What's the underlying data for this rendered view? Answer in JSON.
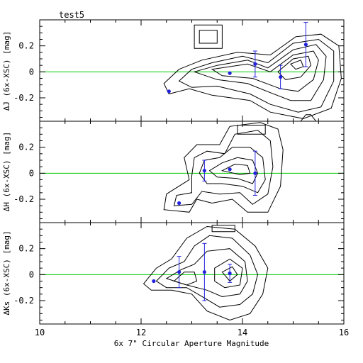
{
  "chart_data": [
    {
      "type": "contour",
      "panel": "top",
      "title": "test5",
      "xlabel": "",
      "ylabel": "ΔJ (6x-XSC) [mag]",
      "xlim": [
        10,
        16
      ],
      "ylim": [
        -0.38,
        0.4
      ],
      "ytick_labels": [
        "0.2",
        "0",
        "-0.2"
      ],
      "ytick_values": [
        0.2,
        0,
        -0.2
      ],
      "reference_line": {
        "y": 0,
        "color": "#00cc00"
      },
      "points": [
        {
          "x": 12.55,
          "y": -0.15,
          "yerr": 0
        },
        {
          "x": 13.75,
          "y": -0.01,
          "yerr": 0
        },
        {
          "x": 14.25,
          "y": 0.06,
          "yerr": 0.1
        },
        {
          "x": 14.75,
          "y": -0.04,
          "yerr": 0.09
        },
        {
          "x": 15.25,
          "y": 0.21,
          "yerr": 0.17
        }
      ],
      "contours": [
        [
          [
            12.45,
            -0.09
          ],
          [
            12.75,
            0.02
          ],
          [
            13.2,
            0.09
          ],
          [
            13.9,
            0.15
          ],
          [
            14.55,
            0.13
          ],
          [
            15.05,
            0.27
          ],
          [
            15.55,
            0.29
          ],
          [
            15.9,
            0.2
          ],
          [
            15.95,
            -0.05
          ],
          [
            15.75,
            -0.28
          ],
          [
            15.2,
            -0.36
          ],
          [
            14.55,
            -0.31
          ],
          [
            14.15,
            -0.22
          ],
          [
            13.4,
            -0.18
          ],
          [
            12.95,
            -0.13
          ],
          [
            12.55,
            -0.17
          ]
        ],
        [
          [
            12.75,
            -0.07
          ],
          [
            13.0,
            0.02
          ],
          [
            13.4,
            0.07
          ],
          [
            14.0,
            0.12
          ],
          [
            14.5,
            0.07
          ],
          [
            15.0,
            0.22
          ],
          [
            15.5,
            0.25
          ],
          [
            15.8,
            0.16
          ],
          [
            15.8,
            -0.07
          ],
          [
            15.55,
            -0.27
          ],
          [
            15.1,
            -0.31
          ],
          [
            14.55,
            -0.25
          ],
          [
            14.15,
            -0.17
          ],
          [
            13.5,
            -0.11
          ],
          [
            13.0,
            -0.12
          ]
        ],
        [
          [
            13.05,
            0.0
          ],
          [
            13.5,
            0.05
          ],
          [
            14.1,
            0.09
          ],
          [
            14.5,
            0.03
          ],
          [
            15.0,
            0.17
          ],
          [
            15.45,
            0.21
          ],
          [
            15.65,
            0.12
          ],
          [
            15.6,
            -0.06
          ],
          [
            15.35,
            -0.22
          ],
          [
            14.95,
            -0.22
          ],
          [
            14.55,
            -0.16
          ],
          [
            14.1,
            -0.09
          ],
          [
            13.5,
            -0.06
          ]
        ],
        [
          [
            13.4,
            0.02
          ],
          [
            14.1,
            0.06
          ],
          [
            14.55,
            0.0
          ],
          [
            15.0,
            0.13
          ],
          [
            15.4,
            0.16
          ],
          [
            15.5,
            0.09
          ],
          [
            15.4,
            -0.06
          ],
          [
            15.1,
            -0.15
          ],
          [
            14.75,
            -0.13
          ],
          [
            14.2,
            -0.05
          ],
          [
            13.6,
            -0.03
          ]
        ],
        [
          [
            14.7,
            0.0
          ],
          [
            15.0,
            0.1
          ],
          [
            15.3,
            0.12
          ],
          [
            15.35,
            0.05
          ],
          [
            15.15,
            -0.04
          ],
          [
            14.85,
            -0.06
          ]
        ],
        [
          [
            14.95,
            0.06
          ],
          [
            15.15,
            0.09
          ],
          [
            15.2,
            0.04
          ],
          [
            15.05,
            0.02
          ]
        ],
        [
          [
            13.05,
            0.36
          ],
          [
            13.6,
            0.36
          ],
          [
            13.6,
            0.18
          ],
          [
            13.05,
            0.18
          ]
        ],
        [
          [
            13.15,
            0.32
          ],
          [
            13.5,
            0.32
          ],
          [
            13.5,
            0.22
          ],
          [
            13.15,
            0.22
          ]
        ],
        [
          [
            15.15,
            -0.38
          ],
          [
            15.45,
            -0.38
          ],
          [
            15.35,
            -0.33
          ],
          [
            15.25,
            -0.33
          ]
        ]
      ]
    },
    {
      "type": "contour",
      "panel": "middle",
      "xlabel": "",
      "ylabel": "ΔH (6x-XSC) [mag]",
      "xlim": [
        10,
        16
      ],
      "ylim": [
        -0.38,
        0.4
      ],
      "ytick_labels": [
        "0.2",
        "0",
        "-0.2"
      ],
      "ytick_values": [
        0.2,
        0,
        -0.2
      ],
      "reference_line": {
        "y": 0,
        "color": "#00cc00"
      },
      "points": [
        {
          "x": 12.75,
          "y": -0.23,
          "yerr": 0
        },
        {
          "x": 13.25,
          "y": 0.02,
          "yerr": 0.08
        },
        {
          "x": 13.75,
          "y": 0.03,
          "yerr": 0
        },
        {
          "x": 14.25,
          "y": 0.0,
          "yerr": 0.17
        }
      ],
      "contours": [
        [
          [
            12.45,
            -0.28
          ],
          [
            12.5,
            -0.16
          ],
          [
            12.95,
            -0.05
          ],
          [
            12.85,
            0.12
          ],
          [
            13.1,
            0.22
          ],
          [
            13.55,
            0.22
          ],
          [
            13.75,
            0.36
          ],
          [
            14.35,
            0.39
          ],
          [
            14.7,
            0.34
          ],
          [
            14.8,
            0.18
          ],
          [
            14.75,
            -0.1
          ],
          [
            14.5,
            -0.3
          ],
          [
            14.1,
            -0.3
          ],
          [
            13.8,
            -0.2
          ],
          [
            13.4,
            -0.23
          ],
          [
            13.1,
            -0.2
          ],
          [
            12.95,
            -0.3
          ]
        ],
        [
          [
            12.65,
            -0.25
          ],
          [
            12.7,
            -0.17
          ],
          [
            13.0,
            -0.15
          ],
          [
            13.0,
            -0.02
          ],
          [
            13.05,
            0.12
          ],
          [
            13.3,
            0.17
          ],
          [
            13.65,
            0.15
          ],
          [
            13.85,
            0.3
          ],
          [
            14.3,
            0.33
          ],
          [
            14.55,
            0.25
          ],
          [
            14.6,
            0.05
          ],
          [
            14.5,
            -0.16
          ],
          [
            14.2,
            -0.24
          ],
          [
            13.95,
            -0.15
          ],
          [
            13.55,
            -0.16
          ],
          [
            13.2,
            -0.14
          ],
          [
            13.0,
            -0.24
          ]
        ],
        [
          [
            13.15,
            0.0
          ],
          [
            13.25,
            0.1
          ],
          [
            13.55,
            0.12
          ],
          [
            13.8,
            0.2
          ],
          [
            14.15,
            0.2
          ],
          [
            14.4,
            0.12
          ],
          [
            14.45,
            -0.05
          ],
          [
            14.3,
            -0.15
          ],
          [
            14.0,
            -0.1
          ],
          [
            13.6,
            -0.08
          ],
          [
            13.3,
            -0.08
          ]
        ],
        [
          [
            13.35,
            0.02
          ],
          [
            13.6,
            0.08
          ],
          [
            13.9,
            0.12
          ],
          [
            14.2,
            0.1
          ],
          [
            14.3,
            0.0
          ],
          [
            14.2,
            -0.08
          ],
          [
            13.9,
            -0.04
          ],
          [
            13.5,
            -0.03
          ]
        ],
        [
          [
            13.6,
            0.02
          ],
          [
            13.85,
            0.07
          ],
          [
            14.1,
            0.06
          ],
          [
            14.15,
            0.0
          ],
          [
            13.95,
            -0.01
          ]
        ],
        [
          [
            13.9,
            0.3
          ],
          [
            14.45,
            0.3
          ],
          [
            14.45,
            0.37
          ],
          [
            13.9,
            0.37
          ]
        ]
      ]
    },
    {
      "type": "contour",
      "panel": "bottom",
      "xlabel": "6x 7\" Circular Aperture Magnitude",
      "ylabel": "ΔKs (6x-XSC) [mag]",
      "xlim": [
        10,
        16
      ],
      "ylim": [
        -0.38,
        0.4
      ],
      "xtick_labels": [
        "10",
        "12",
        "14",
        "16"
      ],
      "xtick_values": [
        10,
        12,
        14,
        16
      ],
      "ytick_labels": [
        "0.2",
        "0",
        "-0.2"
      ],
      "ytick_values": [
        0.2,
        0,
        -0.2
      ],
      "reference_line": {
        "y": 0,
        "color": "#00cc00"
      },
      "points": [
        {
          "x": 12.25,
          "y": -0.05,
          "yerr": 0
        },
        {
          "x": 12.75,
          "y": 0.02,
          "yerr": 0.12
        },
        {
          "x": 13.25,
          "y": 0.02,
          "yerr": 0.22
        },
        {
          "x": 13.75,
          "y": 0.01,
          "yerr": 0.07
        }
      ],
      "contours": [
        [
          [
            12.05,
            -0.07
          ],
          [
            12.3,
            0.05
          ],
          [
            12.6,
            0.12
          ],
          [
            12.9,
            0.28
          ],
          [
            13.3,
            0.37
          ],
          [
            13.85,
            0.35
          ],
          [
            14.25,
            0.22
          ],
          [
            14.5,
            0.05
          ],
          [
            14.4,
            -0.15
          ],
          [
            14.15,
            -0.3
          ],
          [
            13.75,
            -0.35
          ],
          [
            13.3,
            -0.28
          ],
          [
            13.0,
            -0.15
          ],
          [
            12.6,
            -0.12
          ],
          [
            12.2,
            -0.12
          ]
        ],
        [
          [
            12.3,
            -0.05
          ],
          [
            12.55,
            0.05
          ],
          [
            12.85,
            0.1
          ],
          [
            13.05,
            0.22
          ],
          [
            13.35,
            0.3
          ],
          [
            13.8,
            0.28
          ],
          [
            14.15,
            0.15
          ],
          [
            14.3,
            0.0
          ],
          [
            14.2,
            -0.15
          ],
          [
            13.95,
            -0.23
          ],
          [
            13.55,
            -0.25
          ],
          [
            13.25,
            -0.18
          ],
          [
            12.9,
            -0.1
          ],
          [
            12.5,
            -0.1
          ]
        ],
        [
          [
            12.5,
            -0.03
          ],
          [
            12.8,
            0.04
          ],
          [
            13.05,
            0.08
          ],
          [
            13.3,
            0.18
          ],
          [
            13.75,
            0.2
          ],
          [
            14.05,
            0.1
          ],
          [
            14.1,
            -0.05
          ],
          [
            13.95,
            -0.15
          ],
          [
            13.6,
            -0.17
          ],
          [
            13.3,
            -0.12
          ],
          [
            12.9,
            -0.08
          ]
        ],
        [
          [
            12.65,
            -0.05
          ],
          [
            12.85,
            0.02
          ],
          [
            13.05,
            0.02
          ],
          [
            13.1,
            -0.05
          ],
          [
            12.9,
            -0.08
          ]
        ],
        [
          [
            13.45,
            0.05
          ],
          [
            13.75,
            0.12
          ],
          [
            14.0,
            0.05
          ],
          [
            13.95,
            -0.08
          ],
          [
            13.65,
            -0.1
          ],
          [
            13.45,
            -0.05
          ]
        ],
        [
          [
            13.6,
            0.02
          ],
          [
            13.8,
            0.06
          ],
          [
            13.9,
            0.0
          ],
          [
            13.75,
            -0.05
          ]
        ],
        [
          [
            13.4,
            0.33
          ],
          [
            13.85,
            0.33
          ],
          [
            13.85,
            0.38
          ],
          [
            13.4,
            0.38
          ]
        ]
      ]
    }
  ],
  "colors": {
    "contour": "#000000",
    "points": "#2222dd",
    "reference_line": "#00cc00",
    "frame": "#000000",
    "background": "#ffffff"
  }
}
